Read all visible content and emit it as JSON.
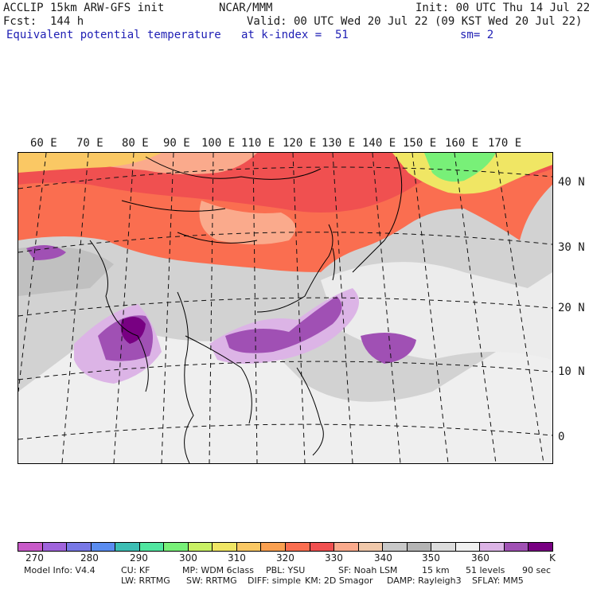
{
  "header": {
    "model": "ACCLIP 15km ARW-GFS init",
    "center": "NCAR/MMM",
    "init": "Init: 00 UTC Thu 14 Jul 22",
    "fcst": "Fcst:  144 h",
    "valid": "Valid: 00 UTC Wed 20 Jul 22 (09 KST Wed 20 Jul 22)",
    "field": "Equivalent potential temperature",
    "level": "at k-index =  51",
    "smooth": "sm= 2"
  },
  "map": {
    "lon_labels": [
      "60 E",
      "70 E",
      "80 E",
      "90 E",
      "100 E",
      "110 E",
      "120 E",
      "130 E",
      "140 E",
      "150 E",
      "160 E",
      "170 E"
    ],
    "lat_labels": [
      "40 N",
      "30 N",
      "20 N",
      "10 N",
      "0"
    ]
  },
  "colorbar": {
    "colors": [
      "#c85ac8",
      "#a064dc",
      "#7878e6",
      "#5a8cf0",
      "#3cbeb4",
      "#50e6a0",
      "#78f078",
      "#c8f064",
      "#f0e664",
      "#fac864",
      "#faa050",
      "#fa6e50",
      "#f05050",
      "#faaa8c",
      "#f0c8aa",
      "#c8c8c8",
      "#b4b4b4",
      "#dcdcdc",
      "#f0f0f0",
      "#dcb4e6",
      "#a050b4",
      "#780082"
    ],
    "ticks": [
      "270",
      "280",
      "290",
      "300",
      "310",
      "320",
      "330",
      "340",
      "350",
      "360"
    ],
    "unit": "K"
  },
  "footer": {
    "line1": [
      "Model Info: V4.4",
      "CU: KF",
      "MP: WDM 6class",
      "PBL: YSU",
      "SF: Noah LSM",
      "15 km",
      "51 levels",
      "90 sec"
    ],
    "line2": [
      "LW: RRTMG",
      "SW: RRTMG",
      "DIFF: simple",
      "KM: 2D Smagor",
      "DAMP: Rayleigh3",
      "SFLAY: MM5"
    ]
  }
}
